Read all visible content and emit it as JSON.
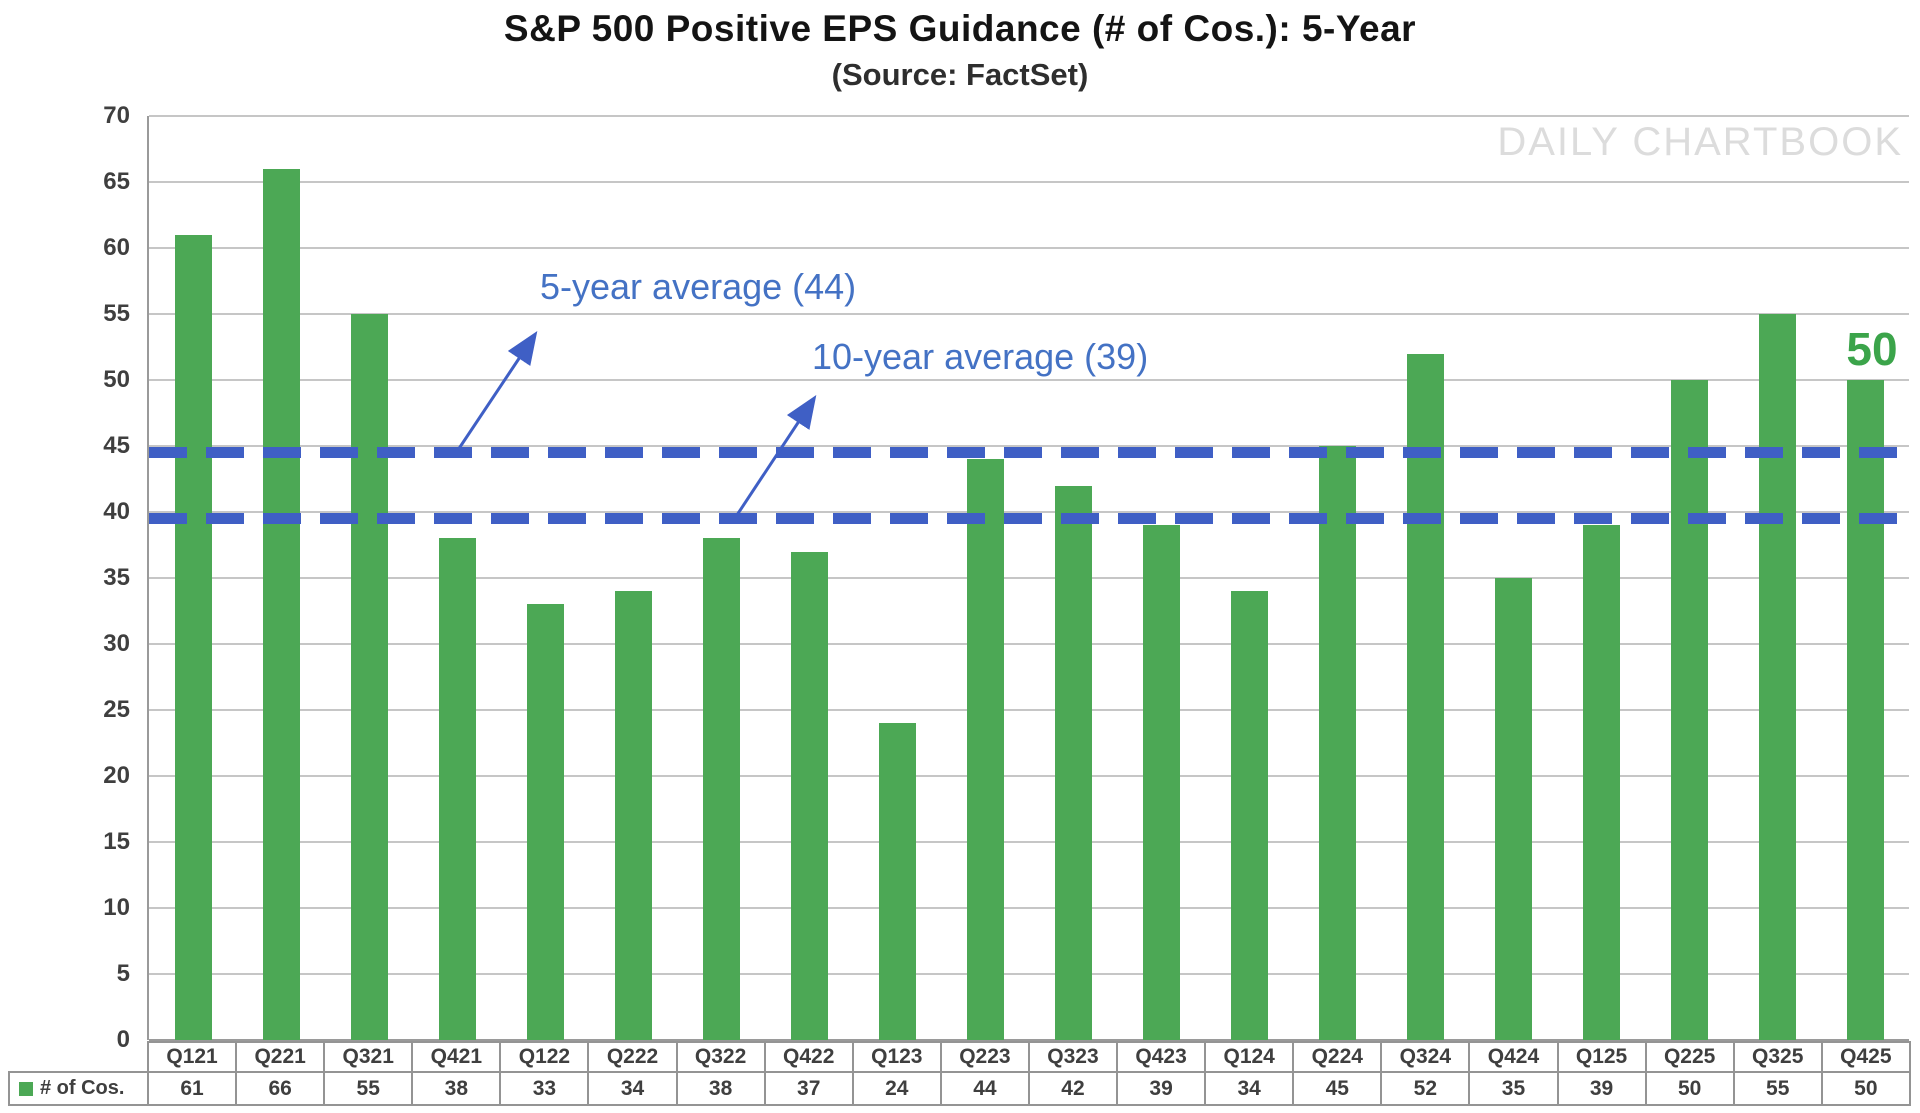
{
  "header": {
    "title": "S&P 500 Positive EPS Guidance (# of Cos.): 5-Year",
    "subtitle": "(Source: FactSet)"
  },
  "watermark": "DAILY CHARTBOOK",
  "colors": {
    "bar_green": "#4CA855",
    "label_green": "#3BA44A",
    "accent_blue": "#3F5FC5",
    "annotation_blue": "#4472C4",
    "watermark_gray": "#DCDCDC"
  },
  "chart_data": {
    "type": "bar",
    "title": "S&P 500 Positive EPS Guidance (# of Cos.): 5-Year",
    "subtitle": "(Source: FactSet)",
    "series_name": "# of Cos.",
    "categories": [
      "Q121",
      "Q221",
      "Q321",
      "Q421",
      "Q122",
      "Q222",
      "Q322",
      "Q422",
      "Q123",
      "Q223",
      "Q323",
      "Q423",
      "Q124",
      "Q224",
      "Q324",
      "Q424",
      "Q125",
      "Q225",
      "Q325",
      "Q425"
    ],
    "values": [
      61,
      66,
      55,
      38,
      33,
      34,
      38,
      37,
      24,
      44,
      42,
      39,
      34,
      45,
      52,
      35,
      39,
      50,
      55,
      50
    ],
    "ylim": [
      0,
      70
    ],
    "yticks": [
      0,
      5,
      10,
      15,
      20,
      25,
      30,
      35,
      40,
      45,
      50,
      55,
      60,
      65,
      70
    ],
    "grid": true,
    "legend_position": "bottom-table",
    "reference_lines": [
      {
        "label": "5-year average (44)",
        "value": 44
      },
      {
        "label": "10-year average (39)",
        "value": 39
      }
    ],
    "last_bar_label": "50"
  }
}
